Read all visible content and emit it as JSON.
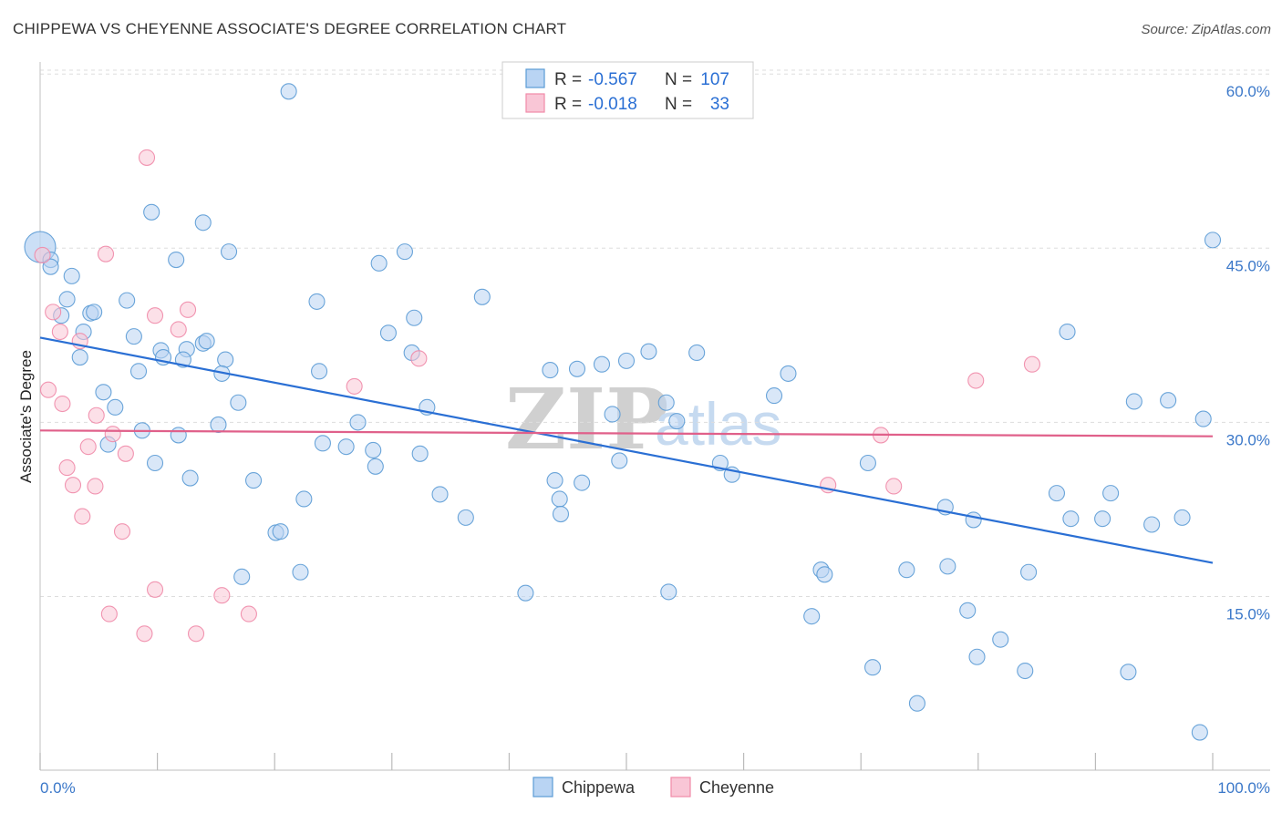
{
  "title": "CHIPPEWA VS CHEYENNE ASSOCIATE'S DEGREE CORRELATION CHART",
  "source": "Source: ZipAtlas.com",
  "watermark": {
    "zip": "ZIP",
    "atlas": "atlas"
  },
  "stats": [
    {
      "r_label": "R =",
      "r_value": "-0.567",
      "n_label": "N =",
      "n_value": "107"
    },
    {
      "r_label": "R =",
      "r_value": "-0.018",
      "n_label": "N =",
      "n_value": "33"
    }
  ],
  "chart_data": {
    "type": "scatter",
    "title": "CHIPPEWA VS CHEYENNE ASSOCIATE'S DEGREE CORRELATION CHART",
    "xlabel": "",
    "ylabel": "Associate's Degree",
    "xlim": [
      0,
      100
    ],
    "ylim": [
      0,
      63
    ],
    "x_tick_labels": [
      "0.0%",
      "100.0%"
    ],
    "y_ticks": [
      15,
      30,
      45,
      60
    ],
    "y_tick_labels": [
      "15.0%",
      "30.0%",
      "45.0%",
      "60.0%"
    ],
    "grid": true,
    "legend_position": "bottom-center",
    "colors": {
      "chippewa": "#5b9bd5",
      "chippewa_line": "#2a6fd4",
      "cheyenne": "#f08aa8",
      "cheyenne_line": "#e0608a",
      "tick": "#3b78c9"
    },
    "series": [
      {
        "name": "Chippewa",
        "trend": {
          "x": [
            0,
            100
          ],
          "y": [
            37.3,
            17.9
          ]
        },
        "points": [
          [
            0,
            45.1
          ],
          [
            0.9,
            44.0
          ],
          [
            0.9,
            43.4
          ],
          [
            2.7,
            42.6
          ],
          [
            2.3,
            40.6
          ],
          [
            1.8,
            39.2
          ],
          [
            4.3,
            39.4
          ],
          [
            4.6,
            39.5
          ],
          [
            3.7,
            37.8
          ],
          [
            3.4,
            35.6
          ],
          [
            7.4,
            40.5
          ],
          [
            8.0,
            37.4
          ],
          [
            10.3,
            36.2
          ],
          [
            10.5,
            35.6
          ],
          [
            12.5,
            36.3
          ],
          [
            12.2,
            35.4
          ],
          [
            13.9,
            36.8
          ],
          [
            14.2,
            37.0
          ],
          [
            15.8,
            35.4
          ],
          [
            15.5,
            34.2
          ],
          [
            8.4,
            34.4
          ],
          [
            5.4,
            32.6
          ],
          [
            6.4,
            31.3
          ],
          [
            8.7,
            29.3
          ],
          [
            5.8,
            28.1
          ],
          [
            11.8,
            28.9
          ],
          [
            15.2,
            29.8
          ],
          [
            16.9,
            31.7
          ],
          [
            9.8,
            26.5
          ],
          [
            12.8,
            25.2
          ],
          [
            18.2,
            25.0
          ],
          [
            20.1,
            20.5
          ],
          [
            20.5,
            20.6
          ],
          [
            22.2,
            17.1
          ],
          [
            17.2,
            16.7
          ],
          [
            22.5,
            23.4
          ],
          [
            9.5,
            48.1
          ],
          [
            11.6,
            44.0
          ],
          [
            13.9,
            47.2
          ],
          [
            16.1,
            44.7
          ],
          [
            21.2,
            58.5
          ],
          [
            23.6,
            40.4
          ],
          [
            23.8,
            34.4
          ],
          [
            24.1,
            28.2
          ],
          [
            26.1,
            27.9
          ],
          [
            27.1,
            30.0
          ],
          [
            28.4,
            27.6
          ],
          [
            28.6,
            26.2
          ],
          [
            28.9,
            43.7
          ],
          [
            29.7,
            37.7
          ],
          [
            31.1,
            44.7
          ],
          [
            31.9,
            39.0
          ],
          [
            31.7,
            36.0
          ],
          [
            33.0,
            31.3
          ],
          [
            32.4,
            27.3
          ],
          [
            34.1,
            23.8
          ],
          [
            36.3,
            21.8
          ],
          [
            37.7,
            40.8
          ],
          [
            41.4,
            15.3
          ],
          [
            43.5,
            34.5
          ],
          [
            43.9,
            25.0
          ],
          [
            44.3,
            23.4
          ],
          [
            44.4,
            22.1
          ],
          [
            45.8,
            34.6
          ],
          [
            46.2,
            24.8
          ],
          [
            47.9,
            35.0
          ],
          [
            48.8,
            30.7
          ],
          [
            49.4,
            26.7
          ],
          [
            50.0,
            35.3
          ],
          [
            51.9,
            36.1
          ],
          [
            53.4,
            31.7
          ],
          [
            53.6,
            15.4
          ],
          [
            54.3,
            30.1
          ],
          [
            56.0,
            36.0
          ],
          [
            58.0,
            26.5
          ],
          [
            59.0,
            25.5
          ],
          [
            62.6,
            32.3
          ],
          [
            63.8,
            34.2
          ],
          [
            65.8,
            13.3
          ],
          [
            66.6,
            17.3
          ],
          [
            66.9,
            16.9
          ],
          [
            71.0,
            8.9
          ],
          [
            70.6,
            26.5
          ],
          [
            73.9,
            17.3
          ],
          [
            74.8,
            5.8
          ],
          [
            77.2,
            22.7
          ],
          [
            77.4,
            17.6
          ],
          [
            79.1,
            13.8
          ],
          [
            79.6,
            21.6
          ],
          [
            79.9,
            9.8
          ],
          [
            81.9,
            11.3
          ],
          [
            84.0,
            8.6
          ],
          [
            84.3,
            17.1
          ],
          [
            86.7,
            23.9
          ],
          [
            87.6,
            37.8
          ],
          [
            87.9,
            21.7
          ],
          [
            90.6,
            21.7
          ],
          [
            91.3,
            23.9
          ],
          [
            92.8,
            8.5
          ],
          [
            93.3,
            31.8
          ],
          [
            94.8,
            21.2
          ],
          [
            96.2,
            31.9
          ],
          [
            97.4,
            21.8
          ],
          [
            99.2,
            30.3
          ],
          [
            98.9,
            3.3
          ],
          [
            100.0,
            45.7
          ]
        ]
      },
      {
        "name": "Cheyenne",
        "trend": {
          "x": [
            0,
            100
          ],
          "y": [
            29.3,
            28.8
          ]
        },
        "points": [
          [
            0.2,
            44.4
          ],
          [
            1.1,
            39.5
          ],
          [
            1.7,
            37.8
          ],
          [
            3.4,
            37.0
          ],
          [
            0.7,
            32.8
          ],
          [
            1.9,
            31.6
          ],
          [
            5.6,
            44.5
          ],
          [
            9.1,
            52.8
          ],
          [
            9.8,
            39.2
          ],
          [
            11.8,
            38.0
          ],
          [
            12.6,
            39.7
          ],
          [
            4.8,
            30.6
          ],
          [
            6.2,
            29.0
          ],
          [
            4.1,
            27.9
          ],
          [
            7.3,
            27.3
          ],
          [
            2.3,
            26.1
          ],
          [
            2.8,
            24.6
          ],
          [
            4.7,
            24.5
          ],
          [
            3.6,
            21.9
          ],
          [
            7.0,
            20.6
          ],
          [
            9.8,
            15.6
          ],
          [
            15.5,
            15.1
          ],
          [
            5.9,
            13.5
          ],
          [
            17.8,
            13.5
          ],
          [
            8.9,
            11.8
          ],
          [
            13.3,
            11.8
          ],
          [
            26.8,
            33.1
          ],
          [
            32.3,
            35.5
          ],
          [
            67.2,
            24.6
          ],
          [
            71.7,
            28.9
          ],
          [
            72.8,
            24.5
          ],
          [
            79.8,
            33.6
          ],
          [
            84.6,
            35.0
          ]
        ]
      }
    ]
  },
  "legend": {
    "items": [
      {
        "label": "Chippewa"
      },
      {
        "label": "Cheyenne"
      }
    ]
  }
}
